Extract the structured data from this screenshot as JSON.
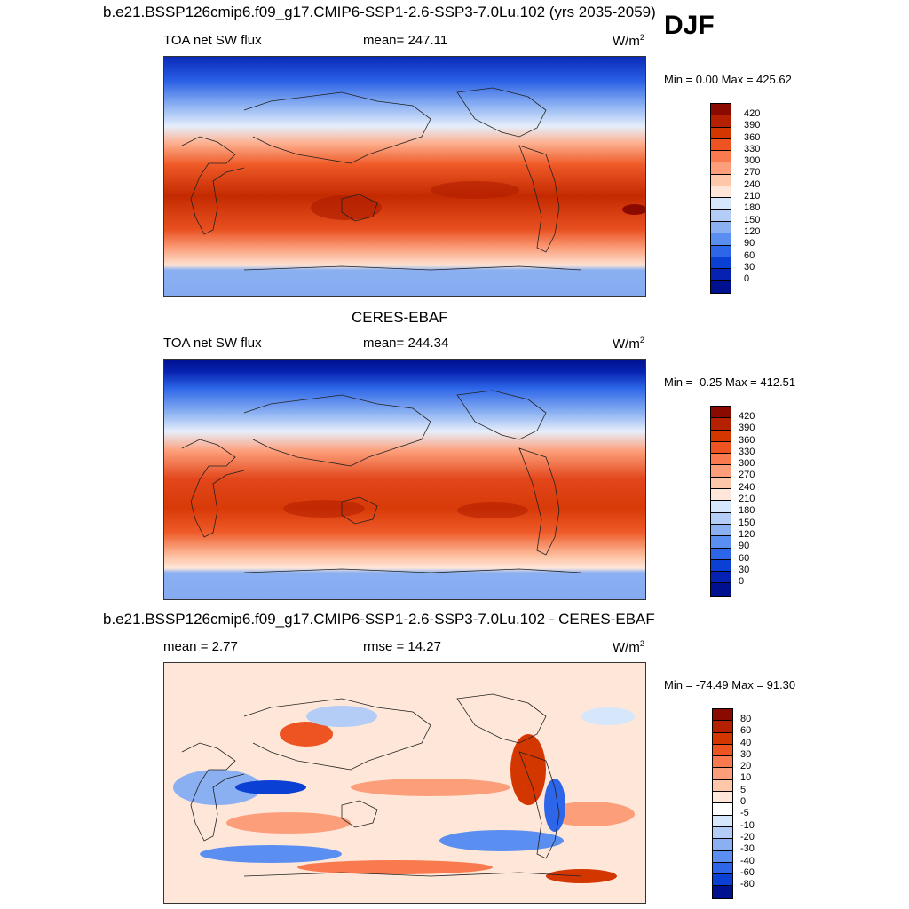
{
  "season": "DJF",
  "panels": [
    {
      "title": "b.e21.BSSP126cmip6.f09_g17.CMIP6-SSP1-2.6-SSP3-7.0Lu.102 (yrs 2035-2059)",
      "left_label": "TOA net SW flux",
      "center_label": "mean= 247.11",
      "units": "W/m",
      "units_sup": "2",
      "minmax": "Min =   0.00 Max = 425.62",
      "map_name": "model-map"
    },
    {
      "title": "CERES-EBAF",
      "left_label": "TOA net SW flux",
      "center_label": "mean= 244.34",
      "units": "W/m",
      "units_sup": "2",
      "minmax": "Min =  -0.25 Max = 412.51",
      "map_name": "obs-map"
    },
    {
      "title": "b.e21.BSSP126cmip6.f09_g17.CMIP6-SSP1-2.6-SSP3-7.0Lu.102 - CERES-EBAF",
      "left_label": "mean =   2.77",
      "center_label": "rmse =  14.27",
      "units": "W/m",
      "units_sup": "2",
      "minmax": "Min = -74.49 Max =  91.30",
      "map_name": "difference-map"
    }
  ],
  "colorbar_abs": {
    "ticks": [
      "420",
      "390",
      "360",
      "330",
      "300",
      "270",
      "240",
      "210",
      "180",
      "150",
      "120",
      "90",
      "60",
      "30",
      "0"
    ],
    "colors": [
      "#8b0a00",
      "#b52000",
      "#d43600",
      "#ee5422",
      "#f97a4e",
      "#fd9e7a",
      "#fec7aa",
      "#fee7d8",
      "#d6e6fb",
      "#b3cdf7",
      "#8ab0f2",
      "#5a8ef0",
      "#2d66e8",
      "#0a40d4",
      "#0622b0",
      "#001190"
    ]
  },
  "colorbar_diff": {
    "ticks": [
      "80",
      "60",
      "40",
      "30",
      "20",
      "10",
      "5",
      "0",
      "-5",
      "-10",
      "-20",
      "-30",
      "-40",
      "-60",
      "-80"
    ],
    "colors": [
      "#8b0a00",
      "#b52000",
      "#d43600",
      "#ee5422",
      "#f97a4e",
      "#fd9e7a",
      "#fec7aa",
      "#fee7d8",
      "#ffffff",
      "#d6e6fb",
      "#b3cdf7",
      "#8ab0f2",
      "#5a8ef0",
      "#2d66e8",
      "#0a40d4",
      "#001190"
    ]
  }
}
